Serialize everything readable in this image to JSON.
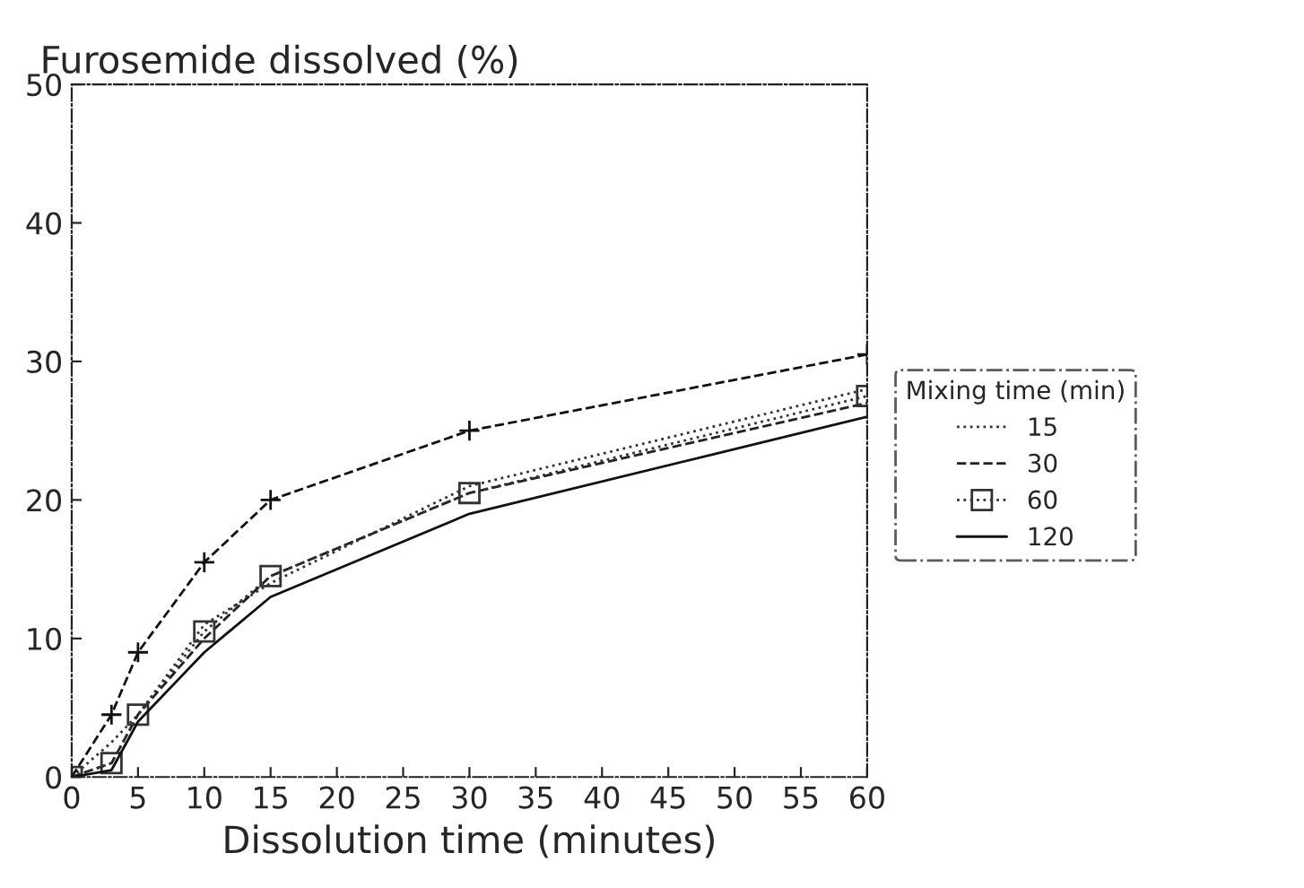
{
  "chart_data": {
    "type": "line",
    "ylabel": "Furosemide dissolved (%)",
    "xlabel": "Dissolution time (minutes)",
    "legend_title": "Mixing time (min)",
    "legend": "right",
    "grid": false,
    "x": [
      0,
      3,
      5,
      10,
      15,
      30,
      60
    ],
    "xlim": [
      0,
      60
    ],
    "xticks": [
      0,
      5,
      10,
      15,
      20,
      25,
      30,
      35,
      40,
      45,
      50,
      55,
      60
    ],
    "ylim": [
      0,
      50
    ],
    "yticks": [
      0,
      10,
      20,
      30,
      40,
      50
    ],
    "series": [
      {
        "name": "15",
        "color": "#333333",
        "values": [
          0,
          2.5,
          4.5,
          11,
          14,
          21,
          28
        ],
        "line_style": "dotted",
        "marker": "none"
      },
      {
        "name": "30",
        "color": "#222222",
        "values": [
          0,
          1,
          4.5,
          10,
          14.5,
          20.5,
          27
        ],
        "line_style": "dashed",
        "marker": "none"
      },
      {
        "name": "60",
        "color": "#333333",
        "values": [
          0,
          1,
          4.5,
          10.5,
          14.5,
          20.5,
          27.5
        ],
        "line_style": "dotted",
        "marker": "square"
      },
      {
        "name": "120",
        "color": "#111111",
        "values": [
          0,
          0.5,
          4,
          9,
          13,
          19,
          26
        ],
        "line_style": "solid",
        "marker": "none"
      },
      {
        "color": "#111111",
        "values": [
          0,
          4.5,
          9,
          15.5,
          20,
          25,
          30.5
        ],
        "line_style": "dashed",
        "marker": "cross"
      }
    ]
  }
}
